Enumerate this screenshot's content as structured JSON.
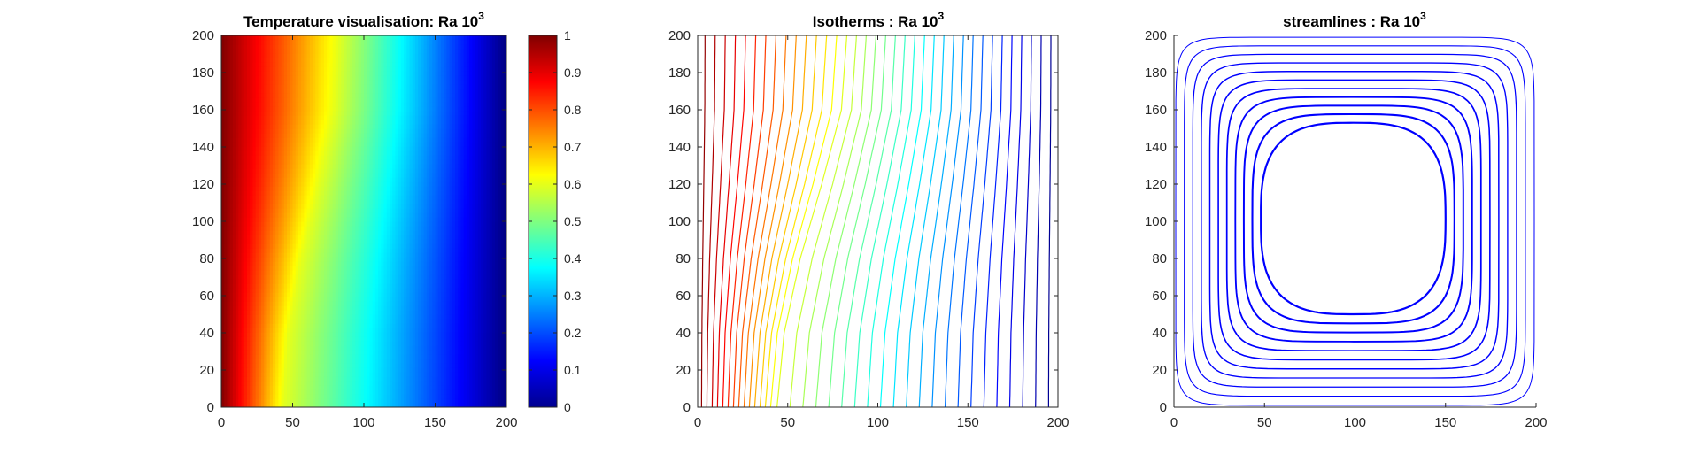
{
  "figure": {
    "background": "#ffffff"
  },
  "chart_data": [
    {
      "type": "heatmap",
      "title": "Temperature visualisation: Ra 10",
      "title_superscript": "3",
      "xlabel": "",
      "ylabel": "",
      "xlim": [
        0,
        200
      ],
      "ylim": [
        0,
        200
      ],
      "xticks": [
        0,
        50,
        100,
        150,
        200
      ],
      "yticks": [
        0,
        20,
        40,
        60,
        80,
        100,
        120,
        140,
        160,
        180,
        200
      ],
      "colormap": "jet",
      "colorbar": {
        "lim": [
          0,
          1
        ],
        "ticks": [
          0,
          0.1,
          0.2,
          0.3,
          0.4,
          0.5,
          0.6,
          0.7,
          0.8,
          0.9,
          1
        ]
      },
      "isotherm_midline": [
        {
          "y": 0,
          "x": 43
        },
        {
          "y": 40,
          "x": 47
        },
        {
          "y": 80,
          "x": 56
        },
        {
          "y": 120,
          "x": 68
        },
        {
          "y": 160,
          "x": 79
        },
        {
          "y": 200,
          "x": 82
        }
      ]
    },
    {
      "type": "line",
      "title": "Isotherms : Ra 10",
      "title_superscript": "3",
      "xlabel": "",
      "ylabel": "",
      "xlim": [
        0,
        200
      ],
      "ylim": [
        0,
        200
      ],
      "xticks": [
        0,
        50,
        100,
        150,
        200
      ],
      "yticks": [
        0,
        20,
        40,
        60,
        80,
        100,
        120,
        140,
        160,
        180,
        200
      ],
      "colormap": "jet",
      "levels": 36,
      "level_range": [
        0.02,
        0.98
      ]
    },
    {
      "type": "line",
      "title": "streamlines : Ra 10",
      "title_superscript": "3",
      "xlabel": "",
      "ylabel": "",
      "xlim": [
        0,
        200
      ],
      "ylim": [
        0,
        200
      ],
      "xticks": [
        0,
        50,
        100,
        150,
        200
      ],
      "yticks": [
        0,
        20,
        40,
        60,
        80,
        100,
        120,
        140,
        160,
        180,
        200
      ],
      "line_color": "#0000ff",
      "cell_center": {
        "x": 100,
        "y": 100
      },
      "innermost_loop": {
        "x": [
          48,
          150
        ],
        "y": [
          50,
          153
        ]
      },
      "levels": 11
    }
  ]
}
